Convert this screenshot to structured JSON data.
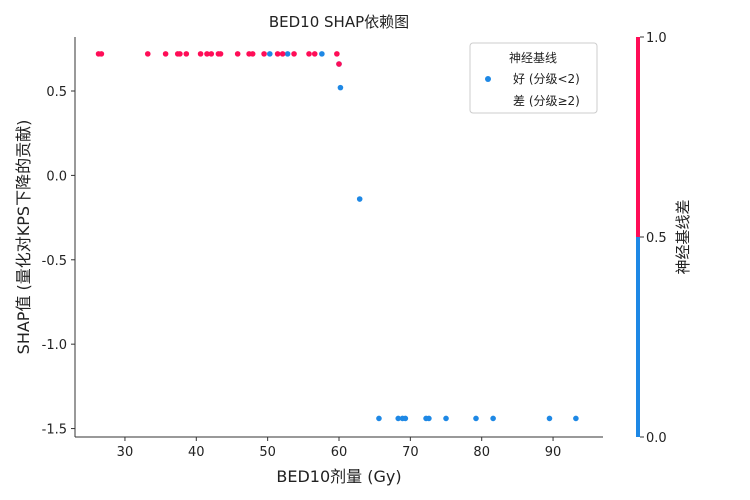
{
  "chart_data": {
    "type": "scatter",
    "title": "BED10 SHAP依赖图",
    "xlabel": "BED10剂量 (Gy)",
    "ylabel": "SHAP值 (量化对KPS下降的贡献)",
    "xlim": [
      23,
      97
    ],
    "ylim": [
      -1.55,
      0.82
    ],
    "xticks": [
      30,
      40,
      50,
      60,
      70,
      80,
      90
    ],
    "yticks": [
      -1.5,
      -1.0,
      -0.5,
      0.0,
      0.5
    ],
    "ytick_labels": [
      "-1.5",
      "-1.0",
      "-0.5",
      "0.0",
      "0.5"
    ],
    "grid": false,
    "legend": {
      "title": "神经基线",
      "placement": "top-right",
      "entries": [
        "好 (分级<2)",
        "差 (分级≥2)"
      ]
    },
    "colorbar": {
      "label": "神经基线差",
      "ticks": [
        "1.0",
        "0.5",
        "0.0"
      ],
      "low_color": "#1e88e5",
      "high_color": "#ff0d57"
    },
    "colors": {
      "good": "#1e88e5",
      "poor": "#ff0d57"
    },
    "series": [
      {
        "name": "好 (分级<2)",
        "color": "#1e88e5",
        "points": [
          [
            50.3,
            0.72
          ],
          [
            52.8,
            0.72
          ],
          [
            57.6,
            0.72
          ],
          [
            60.0,
            0.66
          ],
          [
            60.2,
            0.52
          ],
          [
            62.9,
            -0.14
          ],
          [
            65.6,
            -1.44
          ],
          [
            68.3,
            -1.44
          ],
          [
            68.9,
            -1.44
          ],
          [
            69.3,
            -1.44
          ],
          [
            72.2,
            -1.44
          ],
          [
            72.6,
            -1.44
          ],
          [
            75.0,
            -1.44
          ],
          [
            79.2,
            -1.44
          ],
          [
            81.6,
            -1.44
          ],
          [
            89.5,
            -1.44
          ],
          [
            93.2,
            -1.44
          ]
        ]
      },
      {
        "name": "差 (分级≥2)",
        "color": "#ff0d57",
        "points": [
          [
            26.3,
            0.72
          ],
          [
            26.7,
            0.72
          ],
          [
            33.2,
            0.72
          ],
          [
            35.7,
            0.72
          ],
          [
            37.4,
            0.72
          ],
          [
            37.7,
            0.72
          ],
          [
            38.6,
            0.72
          ],
          [
            40.6,
            0.72
          ],
          [
            41.5,
            0.72
          ],
          [
            42.1,
            0.72
          ],
          [
            43.1,
            0.72
          ],
          [
            43.4,
            0.72
          ],
          [
            45.8,
            0.72
          ],
          [
            47.4,
            0.72
          ],
          [
            47.9,
            0.72
          ],
          [
            49.5,
            0.72
          ],
          [
            51.4,
            0.72
          ],
          [
            52.1,
            0.72
          ],
          [
            53.7,
            0.72
          ],
          [
            55.8,
            0.72
          ],
          [
            56.6,
            0.72
          ],
          [
            59.7,
            0.72
          ],
          [
            60.0,
            0.66
          ]
        ]
      }
    ]
  }
}
